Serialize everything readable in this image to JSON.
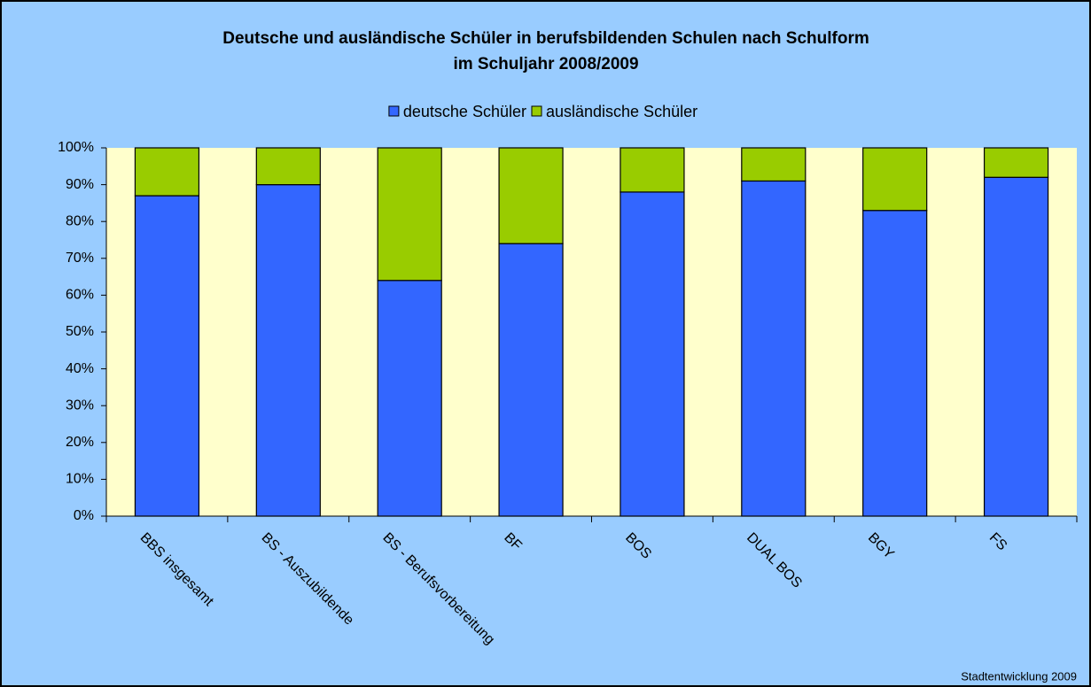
{
  "chart_data": {
    "type": "stacked_bar",
    "title": [
      "Deutsche und ausländische Schüler in berufsbildenden Schulen nach Schulform",
      "im Schuljahr 2008/2009"
    ],
    "categories": [
      "BBS insgesamt",
      "BS - Auszubildende",
      "BS - Berufsvorbereitung",
      "BF",
      "BOS",
      "DUAL BOS",
      "BGY",
      "FS"
    ],
    "series": [
      {
        "name": "deutsche Schüler",
        "color": "#3366ff",
        "values": [
          87,
          90,
          64,
          74,
          88,
          91,
          83,
          92
        ]
      },
      {
        "name": "ausländische Schüler",
        "color": "#99cc00",
        "values": [
          13,
          10,
          36,
          26,
          12,
          9,
          17,
          8
        ]
      }
    ],
    "ylim": [
      0,
      100
    ],
    "yticks": [
      {
        "value": 0,
        "label": "0%"
      },
      {
        "value": 10,
        "label": "10%"
      },
      {
        "value": 20,
        "label": "20%"
      },
      {
        "value": 30,
        "label": "30%"
      },
      {
        "value": 40,
        "label": "40%"
      },
      {
        "value": 50,
        "label": "50%"
      },
      {
        "value": 60,
        "label": "60%"
      },
      {
        "value": 70,
        "label": "70%"
      },
      {
        "value": 80,
        "label": "80%"
      },
      {
        "value": 90,
        "label": "90%"
      },
      {
        "value": 100,
        "label": "100%"
      }
    ],
    "legend": "top",
    "source": "Stadtentwicklung 2009"
  }
}
